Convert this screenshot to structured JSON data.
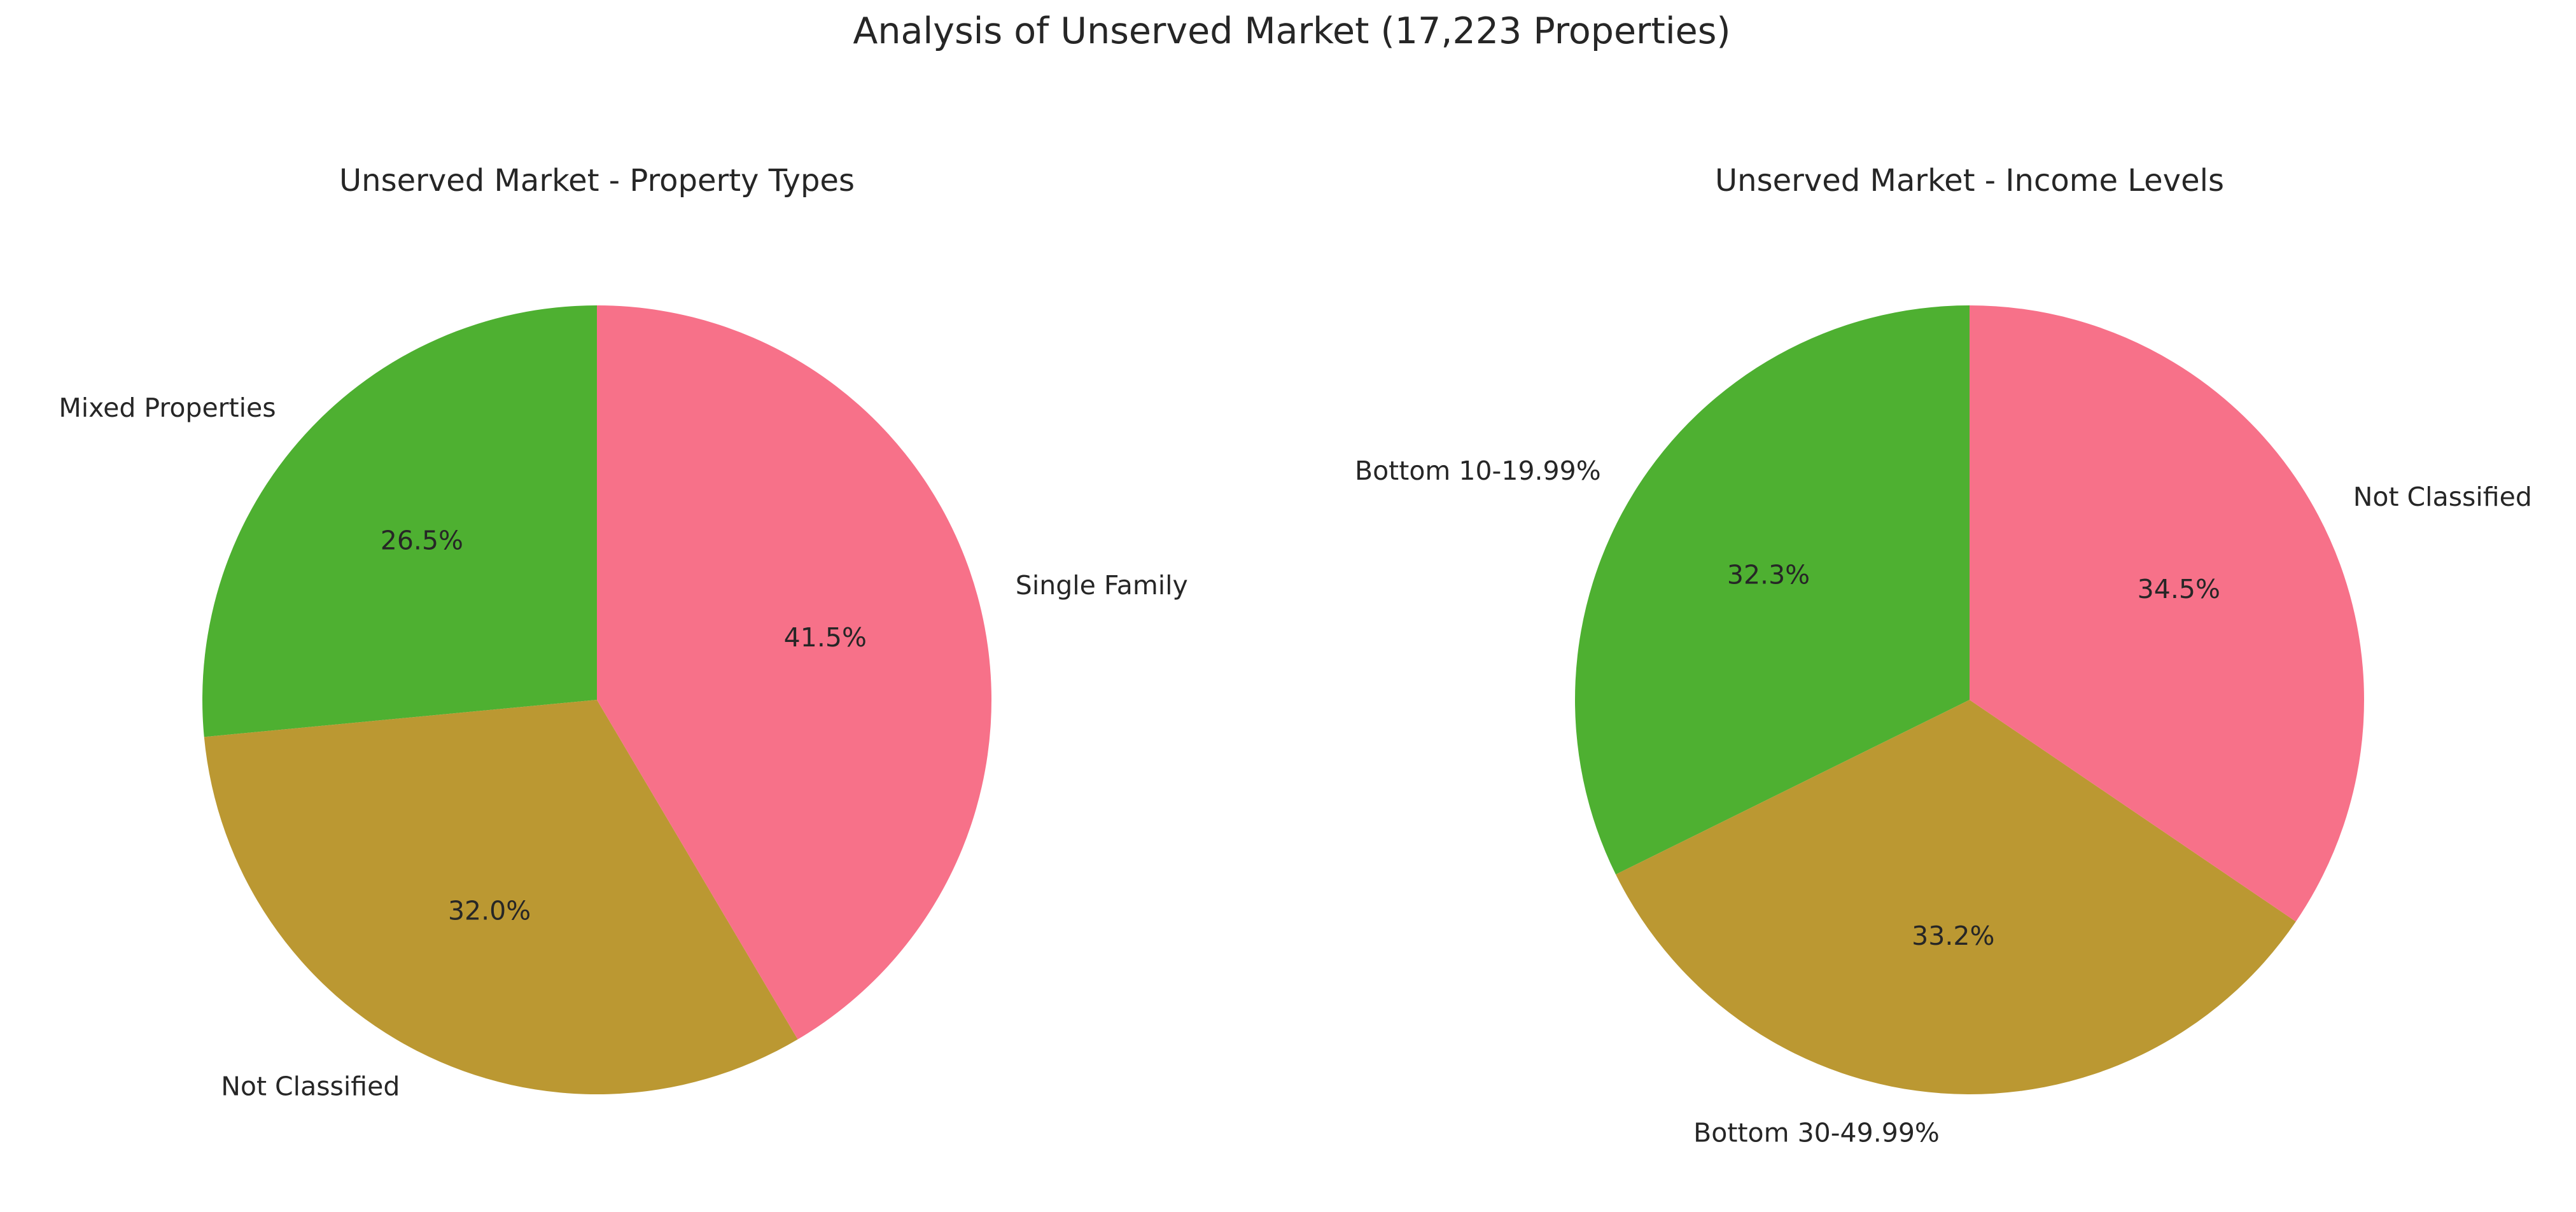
{
  "figure": {
    "title": "Analysis of Unserved Market (17,223 Properties)"
  },
  "chart_data": [
    {
      "type": "pie",
      "title": "Unserved Market - Property Types",
      "slices": [
        {
          "label": "Mixed Properties",
          "value": 26.5,
          "pct_label": "26.5%",
          "color": "#4eb031"
        },
        {
          "label": "Not Classified",
          "value": 32.0,
          "pct_label": "32.0%",
          "color": "#bb9832"
        },
        {
          "label": "Single Family",
          "value": 41.5,
          "pct_label": "41.5%",
          "color": "#f77189"
        }
      ]
    },
    {
      "type": "pie",
      "title": "Unserved Market - Income Levels",
      "slices": [
        {
          "label": "Bottom 10-19.99%",
          "value": 32.3,
          "pct_label": "32.3%",
          "color": "#4eb031"
        },
        {
          "label": "Bottom 30-49.99%",
          "value": 33.2,
          "pct_label": "33.2%",
          "color": "#bb9832"
        },
        {
          "label": "Not Classified",
          "value": 34.5,
          "pct_label": "34.5%",
          "color": "#f77189"
        }
      ]
    }
  ]
}
